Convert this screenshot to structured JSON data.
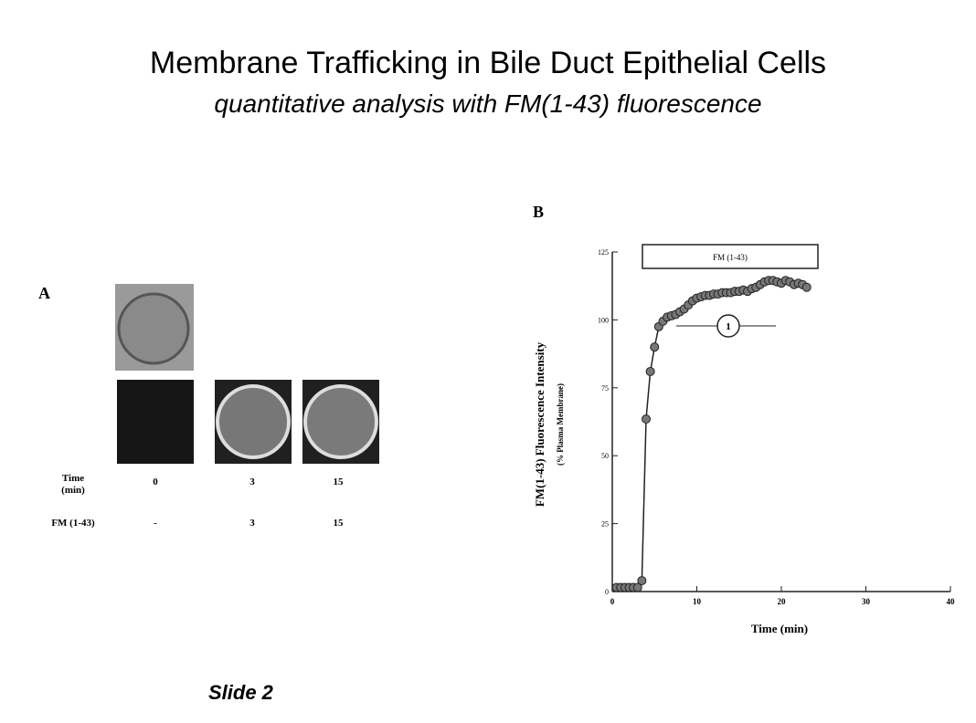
{
  "header": {
    "title": "Membrane Trafficking in Bile Duct Epithelial Cells",
    "subtitle": "quantitative analysis with FM(1-43) fluorescence"
  },
  "panel_a": {
    "label": "A",
    "time_label": [
      "Time",
      "(min)"
    ],
    "times": [
      "0",
      "3",
      "15"
    ],
    "fm_label": "FM (1-43)",
    "fm_values": [
      "-",
      "3",
      "15"
    ]
  },
  "chart_data": {
    "type": "scatter",
    "panel_label": "B",
    "y_label": "FM(1-43) Fluorescence Intensity",
    "y_sublabel": "(% Plasma Membrane)",
    "x_label": "Time (min)",
    "annotations": [
      "FM (1-43)",
      "1"
    ],
    "x": [
      0.5,
      1,
      1.5,
      2,
      2.5,
      3,
      3.5,
      4,
      4.5,
      5,
      5.5,
      6,
      6.5,
      7,
      7.5,
      8,
      8.5,
      9,
      9.5,
      10,
      10.5,
      11,
      11.5,
      12,
      12.5,
      13,
      13.5,
      14,
      14.5,
      15,
      15.5,
      16,
      16.5,
      17,
      17.5,
      18,
      18.5,
      19,
      19.5,
      20,
      20.5,
      21,
      21.5,
      22,
      22.5,
      23
    ],
    "values": [
      1.5,
      1.5,
      1.5,
      1.5,
      1.5,
      1.5,
      4,
      63.5,
      81,
      90,
      97.5,
      99.5,
      101,
      101.5,
      102,
      103,
      104,
      105.5,
      107,
      108,
      108.5,
      109,
      109,
      109.5,
      109.5,
      110,
      110,
      110,
      110.5,
      110.5,
      111,
      110.5,
      111.5,
      112,
      113,
      114,
      114.5,
      114.5,
      114,
      113.5,
      114.5,
      114,
      113,
      113.5,
      113,
      112
    ],
    "color": "#777777",
    "xlim": [
      0,
      40
    ],
    "xticks": [
      0,
      10,
      20,
      30,
      40
    ],
    "ylim": [
      0,
      125
    ],
    "yticks": [
      0,
      25,
      50,
      75,
      100,
      125
    ]
  },
  "footer": {
    "slide": "Slide 2"
  }
}
